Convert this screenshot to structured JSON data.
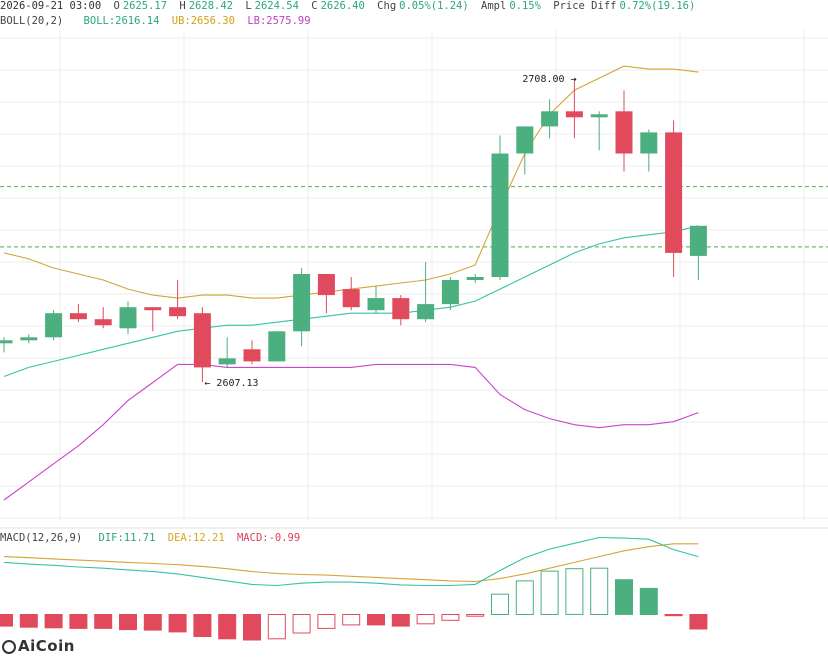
{
  "header": {
    "datetime": "2026-09-21 03:00",
    "open_label": "O",
    "open": "2625.17",
    "high_label": "H",
    "high": "2628.42",
    "low_label": "L",
    "low": "2624.54",
    "close_label": "C",
    "close": "2626.40",
    "chg_label": "Chg",
    "chg": "0.05%(1.24)",
    "ampl_label": "Ampl",
    "ampl": "0.15%",
    "pdiff_label": "Price Diff",
    "pdiff": "0.72%(19.16)"
  },
  "boll": {
    "label": "BOLL(20,2)",
    "boll_label": "BOLL:",
    "boll": "2616.14",
    "ub_label": "UB:",
    "ub": "2656.30",
    "lb_label": "LB:",
    "lb": "2575.99"
  },
  "macd": {
    "label": "MACD(12,26,9)",
    "dif_label": "DIF:",
    "dif": "11.71",
    "dea_label": "DEA:",
    "dea": "12.21",
    "macd_label": "MACD:",
    "macd": "-0.99"
  },
  "annotations": {
    "high_marker": "2708.00",
    "low_marker": "2607.13"
  },
  "watermark": "AiCoin",
  "colors": {
    "up": "#4caf80",
    "down": "#e04a5c",
    "mid": "#35c3a8",
    "upper": "#d4a537",
    "lower": "#cc44cc",
    "dif": "#35c3a8",
    "dea": "#d4a537",
    "grid": "#ececec",
    "dashed": "#4caf50"
  },
  "chart_data": {
    "type": "candlestick",
    "price_ylim": [
      2568,
      2719
    ],
    "macd_ylim": [
      -7,
      12
    ],
    "candles": [
      {
        "o": 2620,
        "h": 2622,
        "l": 2617,
        "c": 2621
      },
      {
        "o": 2621,
        "h": 2623,
        "l": 2620,
        "c": 2622
      },
      {
        "o": 2622,
        "h": 2631,
        "l": 2621,
        "c": 2630
      },
      {
        "o": 2630,
        "h": 2633,
        "l": 2627,
        "c": 2628
      },
      {
        "o": 2628,
        "h": 2632,
        "l": 2625,
        "c": 2626
      },
      {
        "o": 2625,
        "h": 2634,
        "l": 2623,
        "c": 2632
      },
      {
        "o": 2632,
        "h": 2632,
        "l": 2624,
        "c": 2631
      },
      {
        "o": 2632,
        "h": 2641,
        "l": 2628,
        "c": 2629
      },
      {
        "o": 2630,
        "h": 2632,
        "l": 2607.13,
        "c": 2612
      },
      {
        "o": 2613,
        "h": 2622,
        "l": 2612,
        "c": 2615
      },
      {
        "o": 2618,
        "h": 2621,
        "l": 2613,
        "c": 2614
      },
      {
        "o": 2614,
        "h": 2624,
        "l": 2614,
        "c": 2624
      },
      {
        "o": 2624,
        "h": 2645,
        "l": 2619,
        "c": 2643
      },
      {
        "o": 2643,
        "h": 2643,
        "l": 2630,
        "c": 2636
      },
      {
        "o": 2638,
        "h": 2642,
        "l": 2631,
        "c": 2632
      },
      {
        "o": 2631,
        "h": 2639,
        "l": 2630,
        "c": 2635
      },
      {
        "o": 2635,
        "h": 2636,
        "l": 2626,
        "c": 2628
      },
      {
        "o": 2628,
        "h": 2647,
        "l": 2627,
        "c": 2633
      },
      {
        "o": 2633,
        "h": 2642,
        "l": 2631,
        "c": 2641
      },
      {
        "o": 2641,
        "h": 2643,
        "l": 2640,
        "c": 2642
      },
      {
        "o": 2642,
        "h": 2689,
        "l": 2641,
        "c": 2683
      },
      {
        "o": 2683,
        "h": 2692,
        "l": 2676,
        "c": 2692
      },
      {
        "o": 2692,
        "h": 2701,
        "l": 2688,
        "c": 2697
      },
      {
        "o": 2697,
        "h": 2708,
        "l": 2688,
        "c": 2695
      },
      {
        "o": 2695,
        "h": 2697,
        "l": 2684,
        "c": 2696
      },
      {
        "o": 2697,
        "h": 2704,
        "l": 2677,
        "c": 2683
      },
      {
        "o": 2683,
        "h": 2691,
        "l": 2677,
        "c": 2690
      },
      {
        "o": 2690,
        "h": 2694,
        "l": 2642,
        "c": 2650
      },
      {
        "o": 2649,
        "h": 2658,
        "l": 2641,
        "c": 2659
      }
    ],
    "boll_mid": [
      2609,
      2612,
      2614,
      2616,
      2618,
      2620,
      2622,
      2624,
      2625,
      2626,
      2626,
      2627,
      2628,
      2629,
      2630,
      2630,
      2630,
      2631,
      2632,
      2634,
      2638,
      2642,
      2646,
      2650,
      2653,
      2655,
      2656,
      2657,
      2659
    ],
    "boll_upper": [
      2650,
      2648,
      2645,
      2643,
      2641,
      2638,
      2636,
      2635,
      2636,
      2636,
      2635,
      2635,
      2636,
      2637,
      2638,
      2639,
      2640,
      2641,
      2643,
      2646,
      2665,
      2683,
      2696,
      2704,
      2708,
      2712,
      2711,
      2711,
      2710
    ],
    "boll_lower": [
      2568,
      2574,
      2580,
      2586,
      2593,
      2601,
      2607,
      2613,
      2613,
      2612,
      2612,
      2612,
      2612,
      2612,
      2612,
      2613,
      2613,
      2613,
      2613,
      2612,
      2603,
      2598,
      2595,
      2593,
      2592,
      2593,
      2593,
      2594,
      2597
    ],
    "dif": [
      9,
      8.7,
      8.5,
      8.2,
      8,
      7.7,
      7.4,
      7,
      6.4,
      5.8,
      5.2,
      5,
      5.4,
      5.6,
      5.6,
      5.4,
      5.1,
      5,
      5,
      5.2,
      7.6,
      9.8,
      11.3,
      12.3,
      13.3,
      13.2,
      13,
      11.2,
      10
    ],
    "dea": [
      10,
      9.8,
      9.6,
      9.4,
      9.2,
      9,
      8.8,
      8.6,
      8.3,
      7.9,
      7.4,
      7.1,
      6.9,
      6.8,
      6.6,
      6.4,
      6.2,
      6,
      5.8,
      5.7,
      6.2,
      7,
      8,
      9,
      10,
      11,
      11.7,
      12.2,
      12.2
    ],
    "macd_hist": [
      -2,
      -2.2,
      -2.3,
      -2.4,
      -2.4,
      -2.6,
      -2.7,
      -3,
      -3.8,
      -4.2,
      -4.4,
      -4.2,
      -3.2,
      -2.4,
      -1.8,
      -1.8,
      -2,
      -1.6,
      -1,
      -0.3,
      3.5,
      5.8,
      7.5,
      7.9,
      8,
      6,
      4.5,
      -0.2,
      -2.5
    ]
  }
}
